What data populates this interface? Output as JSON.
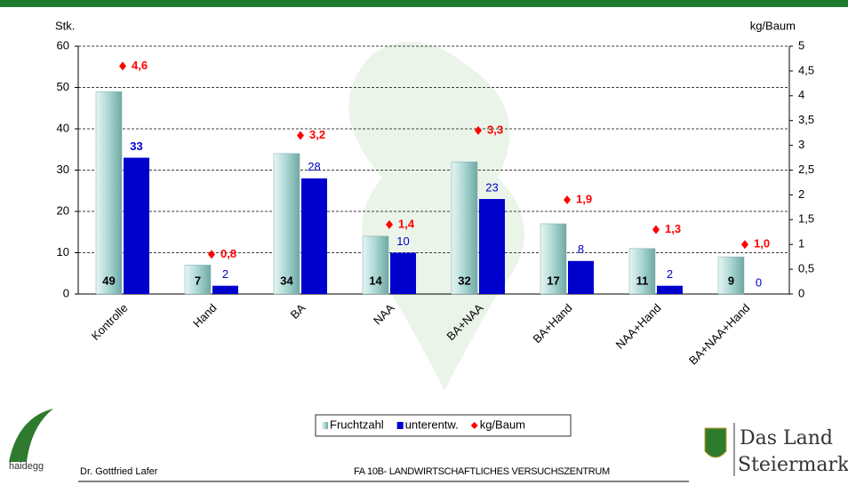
{
  "chart_data": {
    "type": "bar",
    "y_label": "Stk.",
    "y2_label": "kg/Baum",
    "categories": [
      "Kontrolle",
      "Hand",
      "BA",
      "NAA",
      "BA+NAA",
      "BA+Hand",
      "NAA+Hand",
      "BA+NAA+Hand"
    ],
    "series": [
      {
        "name": "Fruchtzahl",
        "color": "#a9d6d2",
        "values": [
          49,
          7,
          34,
          14,
          32,
          17,
          11,
          9
        ]
      },
      {
        "name": "unterentw.",
        "color": "#0000cc",
        "values": [
          33,
          2,
          28,
          10,
          23,
          8,
          2,
          0
        ]
      },
      {
        "name": "kg/Baum",
        "color": "#ff0000",
        "axis": "y2",
        "type": "scatter",
        "values": [
          4.6,
          0.8,
          3.2,
          1.4,
          3.3,
          1.9,
          1.3,
          1.0
        ],
        "value_labels": [
          "4,6",
          "0,8",
          "3,2",
          "1,4",
          "3,3",
          "1,9",
          "1,3",
          "1,0"
        ]
      }
    ],
    "ylim": [
      0,
      60
    ],
    "yticks": [
      0,
      10,
      20,
      30,
      40,
      50,
      60
    ],
    "y2lim": [
      0,
      5
    ],
    "y2ticks": [
      0,
      {
        "value": 0.5,
        "label": "0,5"
      },
      1,
      {
        "value": 1.5,
        "label": "1,5"
      },
      2,
      {
        "value": 2.5,
        "label": "2,5"
      },
      3,
      {
        "value": 3.5,
        "label": "3,5"
      },
      4,
      {
        "value": 4.5,
        "label": "4,5"
      },
      5
    ],
    "grid": true,
    "legend": "bottom"
  },
  "footer": {
    "logo_left": "haidegg",
    "author": "Dr. Gottfried Lafer",
    "institution": "FA 10B- LANDWIRTSCHAFTLICHES VERSUCHSZENTRUM",
    "logo_right_1": "Das Land",
    "logo_right_2": "Steiermark"
  }
}
